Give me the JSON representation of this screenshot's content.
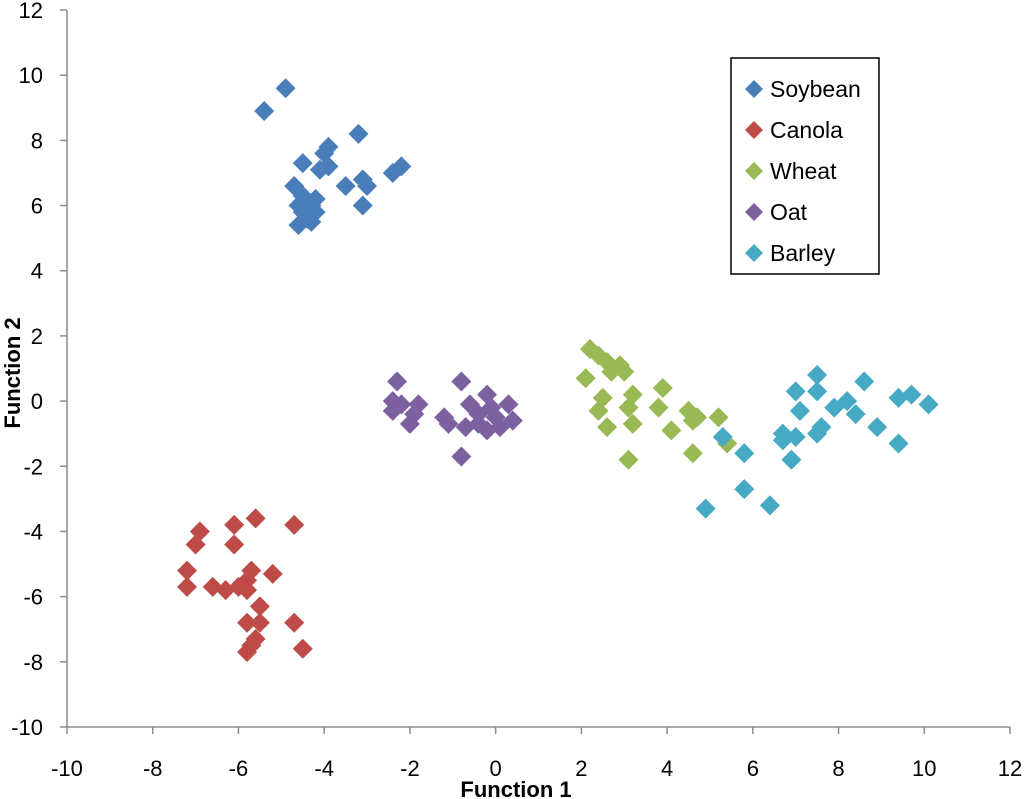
{
  "chart_data": {
    "type": "scatter",
    "title": "",
    "xlabel": "Function 1",
    "ylabel": "Function 2",
    "xlim": [
      -10,
      12
    ],
    "ylim": [
      -10,
      12
    ],
    "xticks": [
      -10,
      -8,
      -6,
      -4,
      -2,
      0,
      2,
      4,
      6,
      8,
      10,
      12
    ],
    "yticks": [
      -10,
      -8,
      -6,
      -4,
      -2,
      0,
      2,
      4,
      6,
      8,
      10,
      12
    ],
    "xtick_labels": [
      "-10",
      "-8",
      "-6",
      "-4",
      "-2",
      "0",
      "2",
      "4",
      "6",
      "8",
      "10",
      "12"
    ],
    "ytick_labels": [
      "-10",
      "-8",
      "-6",
      "-4",
      "-2",
      "0",
      "2",
      "4",
      "6",
      "8",
      "10",
      "12"
    ],
    "grid": false,
    "legend_position": "top-right",
    "series": [
      {
        "name": "Soybean",
        "color": "#4a7ebb",
        "marker": "diamond",
        "points": [
          [
            -5.4,
            8.9
          ],
          [
            -4.9,
            9.6
          ],
          [
            -3.2,
            8.2
          ],
          [
            -3.9,
            7.8
          ],
          [
            -4.0,
            7.6
          ],
          [
            -4.5,
            7.3
          ],
          [
            -3.9,
            7.2
          ],
          [
            -4.1,
            7.1
          ],
          [
            -2.4,
            7.0
          ],
          [
            -2.2,
            7.2
          ],
          [
            -3.1,
            6.8
          ],
          [
            -3.0,
            6.6
          ],
          [
            -3.5,
            6.6
          ],
          [
            -4.7,
            6.6
          ],
          [
            -4.5,
            6.3
          ],
          [
            -4.2,
            6.2
          ],
          [
            -4.6,
            6.0
          ],
          [
            -4.3,
            6.0
          ],
          [
            -3.1,
            6.0
          ],
          [
            -4.5,
            5.8
          ],
          [
            -4.2,
            5.8
          ],
          [
            -4.4,
            5.6
          ],
          [
            -4.3,
            5.5
          ],
          [
            -4.6,
            5.4
          ]
        ]
      },
      {
        "name": "Canola",
        "color": "#be4b48",
        "marker": "diamond",
        "points": [
          [
            -5.6,
            -3.6
          ],
          [
            -6.1,
            -3.8
          ],
          [
            -4.7,
            -3.8
          ],
          [
            -6.9,
            -4.0
          ],
          [
            -7.0,
            -4.4
          ],
          [
            -6.1,
            -4.4
          ],
          [
            -7.2,
            -5.2
          ],
          [
            -5.7,
            -5.2
          ],
          [
            -5.2,
            -5.3
          ],
          [
            -5.8,
            -5.5
          ],
          [
            -7.2,
            -5.7
          ],
          [
            -6.6,
            -5.7
          ],
          [
            -6.3,
            -5.8
          ],
          [
            -6.0,
            -5.7
          ],
          [
            -5.8,
            -5.8
          ],
          [
            -5.5,
            -6.3
          ],
          [
            -5.5,
            -6.8
          ],
          [
            -5.8,
            -6.8
          ],
          [
            -4.7,
            -6.8
          ],
          [
            -5.6,
            -7.3
          ],
          [
            -5.7,
            -7.5
          ],
          [
            -5.8,
            -7.7
          ],
          [
            -4.5,
            -7.6
          ]
        ]
      },
      {
        "name": "Wheat",
        "color": "#98b954",
        "marker": "diamond",
        "points": [
          [
            2.2,
            1.6
          ],
          [
            2.4,
            1.4
          ],
          [
            2.6,
            1.2
          ],
          [
            2.9,
            1.1
          ],
          [
            2.7,
            0.9
          ],
          [
            3.0,
            0.9
          ],
          [
            2.1,
            0.7
          ],
          [
            3.9,
            0.4
          ],
          [
            3.2,
            0.2
          ],
          [
            2.5,
            0.1
          ],
          [
            2.4,
            -0.3
          ],
          [
            3.1,
            -0.2
          ],
          [
            3.8,
            -0.2
          ],
          [
            4.5,
            -0.3
          ],
          [
            4.7,
            -0.5
          ],
          [
            5.2,
            -0.5
          ],
          [
            4.6,
            -0.6
          ],
          [
            3.2,
            -0.7
          ],
          [
            2.6,
            -0.8
          ],
          [
            4.1,
            -0.9
          ],
          [
            5.4,
            -1.3
          ],
          [
            4.6,
            -1.6
          ],
          [
            3.1,
            -1.8
          ]
        ]
      },
      {
        "name": "Oat",
        "color": "#7d60a0",
        "marker": "diamond",
        "points": [
          [
            -2.3,
            0.6
          ],
          [
            -0.8,
            0.6
          ],
          [
            -0.2,
            0.2
          ],
          [
            -2.4,
            0.0
          ],
          [
            -1.8,
            -0.1
          ],
          [
            -2.2,
            -0.1
          ],
          [
            -0.6,
            -0.1
          ],
          [
            0.3,
            -0.1
          ],
          [
            -0.1,
            -0.2
          ],
          [
            -2.4,
            -0.3
          ],
          [
            -1.9,
            -0.4
          ],
          [
            -1.2,
            -0.5
          ],
          [
            -0.4,
            -0.4
          ],
          [
            0.0,
            -0.5
          ],
          [
            0.4,
            -0.6
          ],
          [
            -2.0,
            -0.7
          ],
          [
            -1.1,
            -0.7
          ],
          [
            -0.7,
            -0.8
          ],
          [
            -0.4,
            -0.7
          ],
          [
            0.1,
            -0.8
          ],
          [
            -0.2,
            -0.9
          ],
          [
            -0.8,
            -1.7
          ]
        ]
      },
      {
        "name": "Barley",
        "color": "#46aac5",
        "marker": "diamond",
        "points": [
          [
            7.5,
            0.8
          ],
          [
            8.6,
            0.6
          ],
          [
            7.0,
            0.3
          ],
          [
            7.5,
            0.3
          ],
          [
            9.4,
            0.1
          ],
          [
            9.7,
            0.2
          ],
          [
            10.1,
            -0.1
          ],
          [
            8.2,
            0.0
          ],
          [
            7.1,
            -0.3
          ],
          [
            7.9,
            -0.2
          ],
          [
            8.4,
            -0.4
          ],
          [
            7.6,
            -0.8
          ],
          [
            7.5,
            -1.0
          ],
          [
            8.9,
            -0.8
          ],
          [
            6.7,
            -1.0
          ],
          [
            7.0,
            -1.1
          ],
          [
            5.3,
            -1.1
          ],
          [
            6.7,
            -1.2
          ],
          [
            9.4,
            -1.3
          ],
          [
            5.8,
            -1.6
          ],
          [
            6.9,
            -1.8
          ],
          [
            5.8,
            -2.7
          ],
          [
            6.4,
            -3.2
          ],
          [
            4.9,
            -3.3
          ]
        ]
      }
    ]
  }
}
